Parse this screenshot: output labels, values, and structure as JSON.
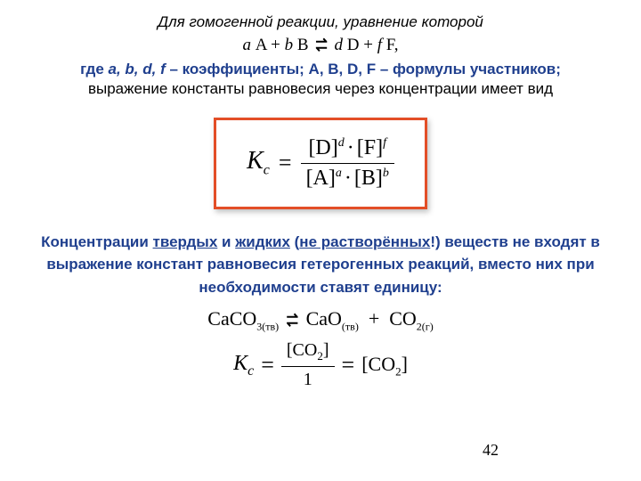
{
  "intro": "Для  гомогенной   реакции, уравнение которой",
  "reaction": {
    "a": "a",
    "A": "A",
    "plus1": " + ",
    "b": "b",
    "B": "B",
    "d": "d",
    "D": "D",
    "plus2": " + ",
    "f": "f",
    "F": "F",
    "comma": ","
  },
  "coeffs_line": {
    "pre": "где ",
    "letters": "a, b, d, f",
    "mid": " – коэффициенты; ",
    "symbols": "A, B, D, F",
    "post": " – формулы участников;"
  },
  "subline": "выражение константы равновесия через концентрации имеет вид",
  "kc_formula": {
    "K": "K",
    "c": "c",
    "D": "[D]",
    "d": "d",
    "F": "[F]",
    "f": "f",
    "A": "[A]",
    "a": "a",
    "B": "[B]",
    "b": "b"
  },
  "note": {
    "t1": "Концентрации ",
    "u1": "твердых",
    "t2": " и ",
    "u2": "жидких",
    "t3": " (",
    "u3": "не растворённых",
    "t4": "!) веществ не входят в выражение констант равновесия гетерогенных реакций, вместо них при необходимости ставят единицу:"
  },
  "hetero": {
    "caco3": "CaCO",
    "sub3": "3(тв)",
    "cao": "CaO",
    "subcao": "(тв)",
    "co2": "CO",
    "subco2": "2(г)"
  },
  "kc2": {
    "K": "K",
    "c": "c",
    "co2": "[CO",
    "sub2": "2",
    "close": "]",
    "den": "1",
    "result": "[CO",
    "rsub": "2",
    "rclose": "]"
  },
  "page_number": "42",
  "colors": {
    "border": "#e34e27",
    "blue": "#1f3f8e",
    "text": "#000000",
    "bg": "#ffffff"
  },
  "box": {
    "border_width": 3
  }
}
